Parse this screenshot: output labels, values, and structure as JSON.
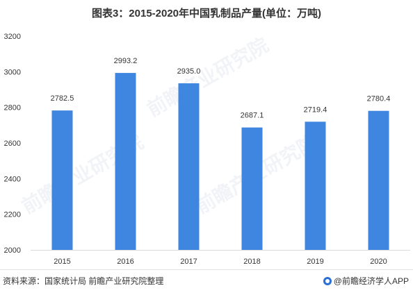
{
  "title": "图表3：2015-2020年中国乳制品产量(单位：万吨)",
  "footer": {
    "source": "资料来源：国家统计局 前瞻产业研究院整理",
    "brand": "@前瞻经济学人APP"
  },
  "watermark_text": "前瞻产业研究院",
  "colors": {
    "bar": "#3f86e0",
    "axis": "#d9d9d9",
    "label": "#333333"
  },
  "chart_data": {
    "type": "bar",
    "title": "图表3：2015-2020年中国乳制品产量(单位：万吨)",
    "categories": [
      "2015",
      "2016",
      "2017",
      "2018",
      "2019",
      "2020"
    ],
    "values": [
      2782.5,
      2993.2,
      2935.0,
      2687.1,
      2719.4,
      2780.4
    ],
    "value_labels": [
      "2782.5",
      "2993.2",
      "2935.0",
      "2687.1",
      "2719.4",
      "2780.4"
    ],
    "ylim": [
      2000,
      3200
    ],
    "yticks": [
      2000,
      2200,
      2400,
      2600,
      2800,
      3000,
      3200
    ],
    "xlabel": "",
    "ylabel": "",
    "grid": false,
    "legend": "none"
  }
}
